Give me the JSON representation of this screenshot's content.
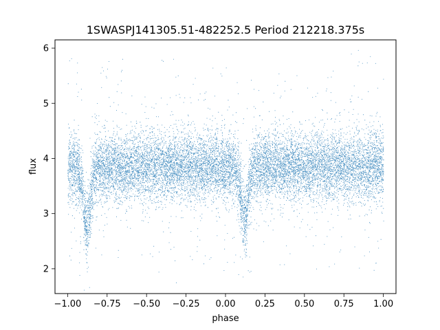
{
  "chart_data": {
    "type": "scatter",
    "title": "1SWASPJ141305.51-482252.5 Period 212218.375s",
    "xlabel": "phase",
    "ylabel": "flux",
    "xlim": [
      -1.08,
      1.08
    ],
    "ylim": [
      1.55,
      6.15
    ],
    "xticks": [
      -1.0,
      -0.75,
      -0.5,
      -0.25,
      0.0,
      0.25,
      0.5,
      0.75,
      1.0
    ],
    "xtick_labels": [
      "−1.00",
      "−0.75",
      "−0.50",
      "−0.25",
      "0.00",
      "0.25",
      "0.50",
      "0.75",
      "1.00"
    ],
    "yticks": [
      2,
      3,
      4,
      5,
      6
    ],
    "ytick_labels": [
      "2",
      "3",
      "4",
      "5",
      "6"
    ],
    "grid": false,
    "marker_color": "#1f77b4",
    "x_range_of_points": [
      -1.0,
      1.0
    ],
    "baseline_flux": 3.85,
    "eclipses": [
      {
        "center_phase": -0.88,
        "min_flux": 2.75
      },
      {
        "center_phase": 0.12,
        "min_flux": 2.9
      }
    ]
  }
}
